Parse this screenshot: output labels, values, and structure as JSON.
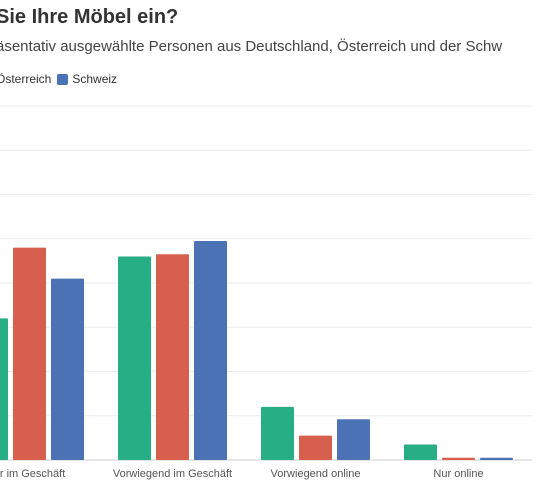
{
  "title": "Sie Ihre Möbel ein?",
  "subtitle": "äsentativ ausgewählte Personen aus Deutschland, Österreich und der Schw",
  "legend": [
    {
      "label": "Österreich",
      "color": "#d6604d"
    },
    {
      "label": "Schweiz",
      "color": "#4a72b5"
    }
  ],
  "chart_data": {
    "type": "bar",
    "categories": [
      "ur im Geschäft",
      "Vorwiegend im Geschäft",
      "Vorwiegend online",
      "Nur online"
    ],
    "series": [
      {
        "color": "#27ae84",
        "values": [
          32,
          46,
          12,
          3.5
        ]
      },
      {
        "name": "Österreich",
        "color": "#d6604d",
        "values": [
          48,
          46.5,
          5.5,
          0.5
        ]
      },
      {
        "name": "Schweiz",
        "color": "#4a72b5",
        "values": [
          41,
          49.5,
          9.2,
          0.5
        ]
      }
    ],
    "ylim": [
      0,
      80
    ],
    "grid": true,
    "legend_position": "top-left"
  }
}
